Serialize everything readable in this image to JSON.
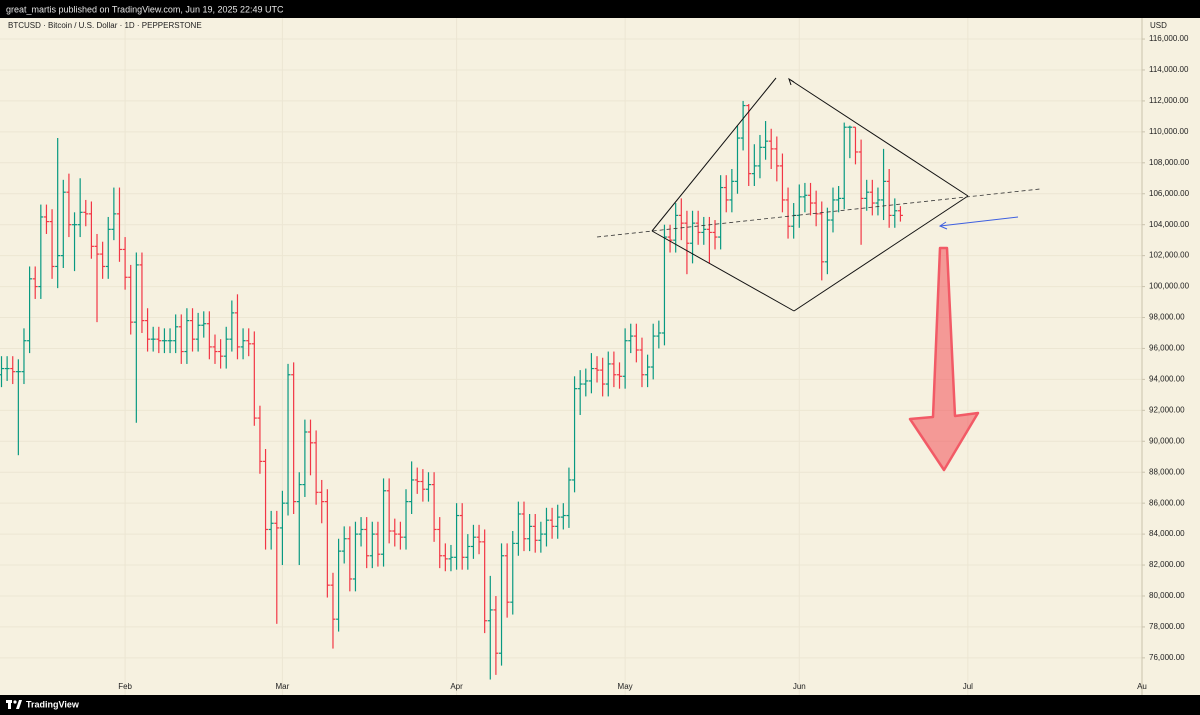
{
  "header": {
    "text": "great_martis published on TradingView.com, Jun 19, 2025 22:49 UTC"
  },
  "footer": {
    "brand": "TradingView"
  },
  "chart_data": {
    "type": "ohlc",
    "title": "BTCUSD · Bitcoin / U.S. Dollar · 1D · PEPPERSTONE",
    "y_axis_label": "USD",
    "categories": [
      null,
      null,
      null,
      null,
      null,
      null,
      null,
      null,
      null,
      null,
      null,
      null,
      null,
      null,
      null,
      null,
      null,
      null,
      null,
      null,
      null,
      null,
      "Feb",
      null,
      null,
      null,
      null,
      null,
      null,
      null,
      null,
      null,
      null,
      null,
      null,
      null,
      null,
      null,
      null,
      null,
      null,
      null,
      null,
      null,
      null,
      null,
      null,
      null,
      null,
      null,
      "Mar",
      null,
      null,
      null,
      null,
      null,
      null,
      null,
      null,
      null,
      null,
      null,
      null,
      null,
      null,
      null,
      null,
      null,
      null,
      null,
      null,
      null,
      null,
      null,
      null,
      null,
      null,
      null,
      null,
      null,
      null,
      "Apr",
      null,
      null,
      null,
      null,
      null,
      null,
      null,
      null,
      null,
      null,
      null,
      null,
      null,
      null,
      null,
      null,
      null,
      null,
      null,
      null,
      null,
      null,
      null,
      null,
      null,
      null,
      null,
      null,
      null,
      "May",
      null,
      null,
      null,
      null,
      null,
      null,
      null,
      null,
      null,
      null,
      null,
      null,
      null,
      null,
      null,
      null,
      null,
      null,
      null,
      null,
      null,
      null,
      null,
      null,
      null,
      null,
      null,
      null,
      null,
      null,
      "Jun",
      null,
      null,
      null,
      null,
      null,
      null,
      null,
      null,
      null,
      null,
      null,
      null,
      null,
      null,
      null,
      null,
      null,
      null,
      null,
      null,
      null,
      null,
      null,
      null,
      null,
      null,
      null,
      null,
      null,
      "Jul",
      null,
      null,
      null,
      null,
      null,
      null,
      null,
      null,
      null,
      null,
      null,
      null,
      null,
      null,
      null,
      null,
      null,
      null,
      null,
      null,
      null,
      null,
      null,
      null,
      null,
      null,
      null,
      null,
      null,
      null,
      "Au"
    ],
    "open": [
      94300,
      94700,
      94700,
      94500,
      94500,
      96500,
      100500,
      100000,
      104500,
      104200,
      101300,
      102000,
      106100,
      104000,
      104000,
      104800,
      104700,
      102600,
      102100,
      101300,
      103700,
      104700,
      102400,
      100600,
      97700,
      101400,
      97800,
      96600,
      96600,
      96500,
      96500,
      96500,
      97400,
      95800,
      97800,
      96600,
      97500,
      97600,
      96100,
      95800,
      95500,
      96600,
      98300,
      96100,
      96500,
      96300,
      91500,
      88700,
      84300,
      84700,
      84400,
      86000,
      94300,
      86100,
      87200,
      90600,
      89900,
      86700,
      86100,
      80700,
      78500,
      82900,
      83700,
      81100,
      84000,
      84300,
      82600,
      84000,
      82700,
      86800,
      84200,
      84000,
      83800,
      86100,
      87500,
      87400,
      86900,
      87200,
      84300,
      82600,
      82400,
      82500,
      85200,
      82500,
      83200,
      83800,
      83500,
      78400,
      79100,
      76300,
      82600,
      79600,
      83400,
      85300,
      83700,
      84500,
      83600,
      84000,
      84900,
      84500,
      85100,
      85200,
      87500,
      93400,
      93700,
      93900,
      94700,
      94600,
      93700,
      95000,
      94300,
      94200,
      96500,
      96800,
      95900,
      94300,
      94800,
      96800,
      97000,
      103200,
      103000,
      104600,
      104100,
      102800,
      104100,
      103500,
      103700,
      103500,
      103200,
      106400,
      105600,
      106800,
      109600,
      111700,
      107300,
      107800,
      109000,
      109400,
      108900,
      107800,
      105600,
      103900,
      104600,
      105800,
      105900,
      105400,
      104700,
      101600,
      104300,
      105600,
      105700,
      110300,
      110300,
      108700,
      105700,
      106100,
      105400,
      105600,
      106800,
      104600,
      104900,
      null,
      null,
      null,
      null,
      null,
      null,
      null,
      null,
      null,
      null,
      null,
      null,
      null,
      null,
      null,
      null,
      null,
      null,
      null,
      null,
      null,
      null,
      null,
      null,
      null,
      null,
      null,
      null,
      null,
      null,
      null,
      null,
      null,
      null,
      null,
      null,
      null,
      null,
      null,
      null,
      null,
      null,
      null
    ],
    "high": [
      95500,
      95500,
      95500,
      95300,
      97300,
      101300,
      101300,
      105300,
      105300,
      105000,
      109600,
      106900,
      107300,
      104800,
      107000,
      105600,
      105500,
      103400,
      102900,
      104500,
      106400,
      106400,
      103200,
      101400,
      102200,
      102200,
      98600,
      97400,
      97400,
      97300,
      97300,
      98200,
      98200,
      98600,
      98600,
      98300,
      98400,
      98400,
      96900,
      96600,
      97400,
      99100,
      99500,
      97300,
      97300,
      97100,
      92300,
      89500,
      85500,
      85500,
      86800,
      95000,
      95100,
      88000,
      91400,
      91400,
      90700,
      87500,
      86900,
      81500,
      83700,
      84500,
      84500,
      84800,
      85100,
      85100,
      84800,
      84800,
      87600,
      87600,
      85000,
      84800,
      86900,
      88700,
      88300,
      88200,
      88000,
      88000,
      85100,
      83400,
      83300,
      86000,
      86000,
      84000,
      84600,
      84600,
      84300,
      81300,
      80000,
      83400,
      83400,
      84200,
      86100,
      86100,
      85300,
      85300,
      84800,
      85700,
      85700,
      85900,
      86000,
      88300,
      94200,
      94600,
      94700,
      95700,
      95500,
      95400,
      95800,
      95800,
      95100,
      97300,
      97600,
      97600,
      96700,
      95600,
      97600,
      97800,
      104000,
      104000,
      105400,
      105700,
      104900,
      104900,
      104900,
      104500,
      104500,
      104300,
      107200,
      107200,
      107600,
      110400,
      112000,
      111800,
      109200,
      109800,
      110700,
      110200,
      109700,
      108600,
      106400,
      105400,
      106600,
      106700,
      106700,
      106200,
      105500,
      105100,
      106400,
      106500,
      110600,
      110400,
      110300,
      109500,
      106900,
      106900,
      106400,
      108900,
      107600,
      105700,
      105200,
      null,
      null,
      null,
      null,
      null,
      null,
      null,
      null,
      null,
      null,
      null,
      null,
      null,
      null,
      null,
      null,
      null,
      null,
      null,
      null,
      null,
      null,
      null,
      null,
      null,
      null,
      null,
      null,
      null,
      null,
      null,
      null,
      null,
      null,
      null,
      null,
      null,
      null,
      null,
      null,
      null,
      null,
      null
    ],
    "low": [
      93500,
      93900,
      93700,
      89100,
      93700,
      95700,
      99200,
      99200,
      103400,
      100500,
      99900,
      101200,
      103200,
      101000,
      103200,
      103900,
      101800,
      97700,
      100500,
      100500,
      103000,
      101600,
      99800,
      96900,
      91200,
      97000,
      95800,
      95800,
      95700,
      95700,
      95700,
      95700,
      95000,
      95000,
      95800,
      95800,
      96700,
      95300,
      95000,
      94700,
      94700,
      95800,
      95300,
      95300,
      95500,
      91000,
      87900,
      83000,
      83000,
      78200,
      82000,
      85200,
      85300,
      82000,
      86400,
      87800,
      85900,
      84700,
      79900,
      76600,
      77700,
      82100,
      80300,
      80300,
      83200,
      81800,
      81800,
      81900,
      81900,
      83400,
      83200,
      83000,
      83000,
      85300,
      86600,
      86100,
      86100,
      83500,
      81800,
      81600,
      81600,
      81700,
      81700,
      81700,
      82400,
      82700,
      77600,
      74600,
      74900,
      75500,
      78600,
      78800,
      82600,
      82900,
      82900,
      82800,
      82800,
      83200,
      83700,
      83700,
      84300,
      84400,
      86700,
      91700,
      92900,
      93100,
      93800,
      92900,
      92900,
      93500,
      93400,
      93400,
      95700,
      95100,
      93500,
      93500,
      94000,
      96000,
      96200,
      102200,
      102200,
      103000,
      100800,
      101500,
      102700,
      102700,
      101500,
      102400,
      102400,
      104800,
      104800,
      106000,
      108800,
      106500,
      106500,
      107000,
      108200,
      107600,
      106800,
      104800,
      103100,
      103100,
      103800,
      104800,
      104600,
      103900,
      100400,
      100800,
      103500,
      104800,
      105000,
      108300,
      107900,
      102700,
      104900,
      104600,
      104600,
      104300,
      103800,
      103800,
      104200,
      null,
      null,
      null,
      null,
      null,
      null,
      null,
      null,
      null,
      null,
      null,
      null,
      null,
      null,
      null,
      null,
      null,
      null,
      null,
      null,
      null,
      null,
      null,
      null,
      null,
      null,
      null,
      null,
      null,
      null,
      null,
      null,
      null,
      null,
      null,
      null,
      null,
      null,
      null,
      null,
      null,
      null,
      null
    ],
    "close": [
      94700,
      94700,
      94500,
      94500,
      96500,
      100500,
      100000,
      104500,
      104200,
      101300,
      102000,
      106100,
      104000,
      104000,
      104800,
      104700,
      102600,
      102100,
      101300,
      103700,
      104700,
      102400,
      100600,
      97700,
      101400,
      97800,
      96600,
      96600,
      96500,
      96500,
      96500,
      97400,
      95800,
      97800,
      96600,
      97500,
      97600,
      96100,
      95800,
      95500,
      96600,
      98300,
      96100,
      96500,
      96300,
      91500,
      88700,
      84300,
      84700,
      84400,
      86000,
      94300,
      86100,
      87200,
      90600,
      89900,
      86700,
      86100,
      80700,
      78500,
      82900,
      83700,
      81100,
      84000,
      84300,
      82600,
      84000,
      82700,
      86800,
      84200,
      84000,
      83800,
      86100,
      87500,
      87400,
      86900,
      87200,
      84300,
      82600,
      82400,
      82500,
      85200,
      82500,
      83200,
      83800,
      83500,
      78400,
      79100,
      76300,
      82600,
      79600,
      83400,
      85300,
      83700,
      84500,
      83600,
      84000,
      84900,
      84500,
      85100,
      85200,
      87500,
      93400,
      93700,
      93900,
      94700,
      94600,
      93700,
      95000,
      94300,
      94200,
      96500,
      96800,
      95900,
      94300,
      94800,
      96800,
      97000,
      103200,
      103000,
      104600,
      104100,
      102800,
      104100,
      103500,
      103700,
      103500,
      103200,
      106400,
      105600,
      106800,
      109600,
      111700,
      107300,
      107800,
      109000,
      109400,
      108900,
      107800,
      105600,
      103900,
      104600,
      105800,
      105900,
      105400,
      104700,
      101600,
      104300,
      105600,
      105700,
      110300,
      110300,
      108700,
      105700,
      106100,
      105400,
      105600,
      106800,
      104600,
      104900,
      104600,
      null,
      null,
      null,
      null,
      null,
      null,
      null,
      null,
      null,
      null,
      null,
      null,
      null,
      null,
      null,
      null,
      null,
      null,
      null,
      null,
      null,
      null,
      null,
      null,
      null,
      null,
      null,
      null,
      null,
      null,
      null,
      null,
      null,
      null,
      null,
      null,
      null,
      null,
      null,
      null,
      null,
      null,
      null
    ],
    "up_color": "#089981",
    "down_color": "#f23645",
    "ylim": [
      73600,
      117360
    ],
    "yticks": [
      {
        "value": 76000,
        "label": "76,000.00"
      },
      {
        "value": 78000,
        "label": "78,000.00"
      },
      {
        "value": 80000,
        "label": "80,000.00"
      },
      {
        "value": 82000,
        "label": "82,000.00"
      },
      {
        "value": 84000,
        "label": "84,000.00"
      },
      {
        "value": 86000,
        "label": "86,000.00"
      },
      {
        "value": 88000,
        "label": "88,000.00"
      },
      {
        "value": 90000,
        "label": "90,000.00"
      },
      {
        "value": 92000,
        "label": "92,000.00"
      },
      {
        "value": 94000,
        "label": "94,000.00"
      },
      {
        "value": 96000,
        "label": "96,000.00"
      },
      {
        "value": 98000,
        "label": "98,000.00"
      },
      {
        "value": 100000,
        "label": "100,000.00"
      },
      {
        "value": 102000,
        "label": "102,000.00"
      },
      {
        "value": 104000,
        "label": "104,000.00"
      },
      {
        "value": 106000,
        "label": "106,000.00"
      },
      {
        "value": 108000,
        "label": "108,000.00"
      },
      {
        "value": 110000,
        "label": "110,000.00"
      },
      {
        "value": 112000,
        "label": "112,000.00"
      },
      {
        "value": 114000,
        "label": "114,000.00"
      },
      {
        "value": 116000,
        "label": "116,000.00"
      }
    ],
    "grid": true
  }
}
